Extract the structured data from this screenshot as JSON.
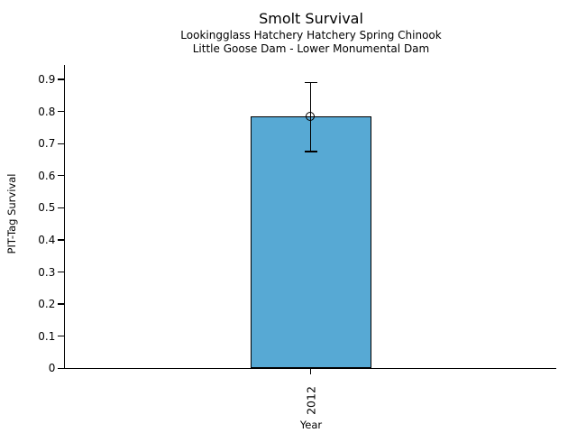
{
  "chart_data": {
    "type": "bar",
    "title": "Smolt Survival",
    "subtitle1": "Lookingglass Hatchery Hatchery Spring Chinook",
    "subtitle2": "Little Goose Dam - Lower Monumental Dam",
    "xlabel": "Year",
    "ylabel": "PIT-Tag Survival",
    "categories": [
      "2012"
    ],
    "values": [
      0.785
    ],
    "error_bars": {
      "lower": [
        0.675
      ],
      "upper": [
        0.89
      ]
    },
    "marker": "open-circle",
    "ylim": [
      0,
      0.945
    ],
    "yticks": [
      {
        "value": 0.0,
        "label": "0"
      },
      {
        "value": 0.1,
        "label": "0.1"
      },
      {
        "value": 0.2,
        "label": "0.2"
      },
      {
        "value": 0.3,
        "label": "0.3"
      },
      {
        "value": 0.4,
        "label": "0.4"
      },
      {
        "value": 0.5,
        "label": "0.5"
      },
      {
        "value": 0.6,
        "label": "0.6"
      },
      {
        "value": 0.7,
        "label": "0.7"
      },
      {
        "value": 0.8,
        "label": "0.8"
      },
      {
        "value": 0.9,
        "label": "0.9"
      }
    ],
    "grid": false,
    "legend": "none",
    "colors": {
      "bar_fill": "#57A9D4",
      "bar_edge": "#000000",
      "error": "#000000",
      "axis": "#000000",
      "text": "#000000",
      "background": "#FFFFFF"
    }
  }
}
